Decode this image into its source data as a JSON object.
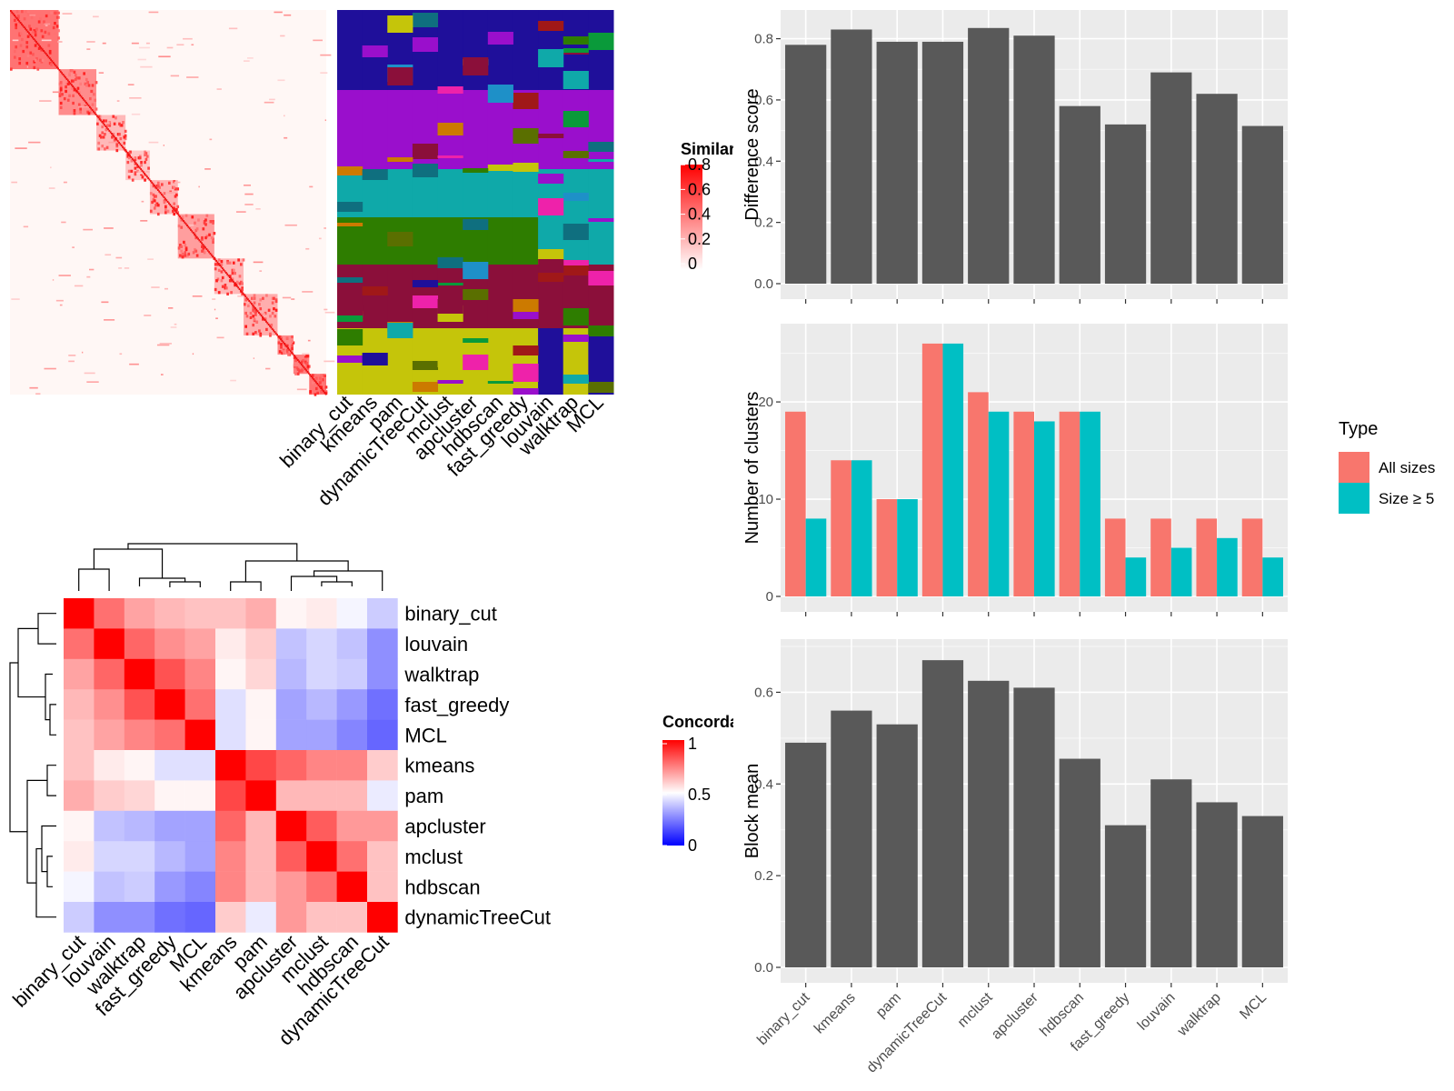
{
  "chart_data": [
    {
      "type": "heatmap",
      "name": "similarity-heatmap",
      "legend": {
        "title": "Similarity",
        "ticks": [
          "0",
          "0.2",
          "0.4",
          "0.6",
          "0.8"
        ],
        "colors": [
          "#ffffff",
          "#ff0000"
        ]
      },
      "block_sizes": [
        40,
        31,
        24,
        20,
        23,
        30,
        24,
        28,
        13,
        13,
        14
      ],
      "column_labels": [
        "binary_cut",
        "kmeans",
        "pam",
        "dynamicTreeCut",
        "mclust",
        "apcluster",
        "hdbscan",
        "fast_greedy",
        "louvain",
        "walktrap",
        "MCL"
      ]
    },
    {
      "type": "heatmap",
      "name": "concordance-heatmap",
      "legend": {
        "title": "Concordance",
        "ticks": [
          "0",
          "0.5",
          "1"
        ],
        "colors": [
          "#0000ff",
          "#ffffff",
          "#ff0000"
        ]
      },
      "labels": [
        "binary_cut",
        "louvain",
        "walktrap",
        "fast_greedy",
        "MCL",
        "kmeans",
        "pam",
        "apcluster",
        "mclust",
        "hdbscan",
        "dynamicTreeCut"
      ],
      "values": [
        [
          1.0,
          0.78,
          0.68,
          0.64,
          0.62,
          0.62,
          0.66,
          0.52,
          0.54,
          0.48,
          0.4
        ],
        [
          0.78,
          1.0,
          0.8,
          0.72,
          0.68,
          0.54,
          0.6,
          0.38,
          0.42,
          0.38,
          0.28
        ],
        [
          0.68,
          0.8,
          1.0,
          0.84,
          0.74,
          0.52,
          0.58,
          0.36,
          0.42,
          0.4,
          0.28
        ],
        [
          0.64,
          0.72,
          0.84,
          1.0,
          0.78,
          0.44,
          0.52,
          0.32,
          0.36,
          0.3,
          0.22
        ],
        [
          0.62,
          0.68,
          0.74,
          0.78,
          1.0,
          0.44,
          0.52,
          0.32,
          0.32,
          0.26,
          0.2
        ],
        [
          0.62,
          0.54,
          0.52,
          0.44,
          0.44,
          1.0,
          0.86,
          0.8,
          0.74,
          0.74,
          0.6
        ],
        [
          0.66,
          0.6,
          0.58,
          0.52,
          0.52,
          0.86,
          1.0,
          0.64,
          0.64,
          0.64,
          0.46
        ],
        [
          0.52,
          0.38,
          0.36,
          0.32,
          0.32,
          0.8,
          0.64,
          1.0,
          0.82,
          0.7,
          0.7
        ],
        [
          0.54,
          0.42,
          0.42,
          0.36,
          0.32,
          0.74,
          0.64,
          0.82,
          1.0,
          0.78,
          0.62
        ],
        [
          0.48,
          0.38,
          0.4,
          0.3,
          0.26,
          0.74,
          0.64,
          0.7,
          0.78,
          1.0,
          0.62
        ],
        [
          0.4,
          0.28,
          0.28,
          0.22,
          0.2,
          0.6,
          0.46,
          0.7,
          0.62,
          0.62,
          1.0
        ]
      ]
    },
    {
      "type": "bar",
      "name": "difference-score",
      "categories": [
        "binary_cut",
        "kmeans",
        "pam",
        "dynamicTreeCut",
        "mclust",
        "apcluster",
        "hdbscan",
        "fast_greedy",
        "louvain",
        "walktrap",
        "MCL"
      ],
      "values": [
        0.78,
        0.83,
        0.79,
        0.79,
        0.835,
        0.81,
        0.58,
        0.52,
        0.69,
        0.62,
        0.515
      ],
      "ylabel": "Difference score",
      "ylim": [
        0,
        0.87
      ],
      "yticks": [
        0.0,
        0.2,
        0.4,
        0.6,
        0.8
      ],
      "ytick_labels": [
        "0.0",
        "0.2",
        "0.4",
        "0.6",
        "0.8"
      ],
      "bar_color": "#595959",
      "grid": true
    },
    {
      "type": "bar",
      "name": "number-of-clusters",
      "categories": [
        "binary_cut",
        "kmeans",
        "pam",
        "dynamicTreeCut",
        "mclust",
        "apcluster",
        "hdbscan",
        "fast_greedy",
        "louvain",
        "walktrap",
        "MCL"
      ],
      "series": [
        {
          "name": "All sizes",
          "values": [
            19,
            14,
            10,
            26,
            21,
            19,
            19,
            8,
            8,
            8,
            8
          ],
          "color": "#F8766D"
        },
        {
          "name": "Size ≥ 5",
          "values": [
            8,
            14,
            10,
            26,
            19,
            18,
            19,
            4,
            5,
            6,
            4
          ],
          "color": "#00BFC4"
        }
      ],
      "ylabel": "Number of clusters",
      "ylim": [
        0,
        27.3
      ],
      "yticks": [
        0,
        10,
        20
      ],
      "ytick_labels": [
        "0",
        "10",
        "20"
      ],
      "legend": {
        "title": "Type",
        "position": "right"
      },
      "grid": true
    },
    {
      "type": "bar",
      "name": "block-mean",
      "categories": [
        "binary_cut",
        "kmeans",
        "pam",
        "dynamicTreeCut",
        "mclust",
        "apcluster",
        "hdbscan",
        "fast_greedy",
        "louvain",
        "walktrap",
        "MCL"
      ],
      "values": [
        0.49,
        0.56,
        0.53,
        0.67,
        0.625,
        0.61,
        0.455,
        0.31,
        0.41,
        0.36,
        0.33
      ],
      "ylabel": "Block mean",
      "ylim": [
        0,
        0.7
      ],
      "yticks": [
        0.0,
        0.2,
        0.4,
        0.6
      ],
      "ytick_labels": [
        "0.0",
        "0.2",
        "0.4",
        "0.6"
      ],
      "bar_color": "#595959",
      "grid": true
    }
  ]
}
